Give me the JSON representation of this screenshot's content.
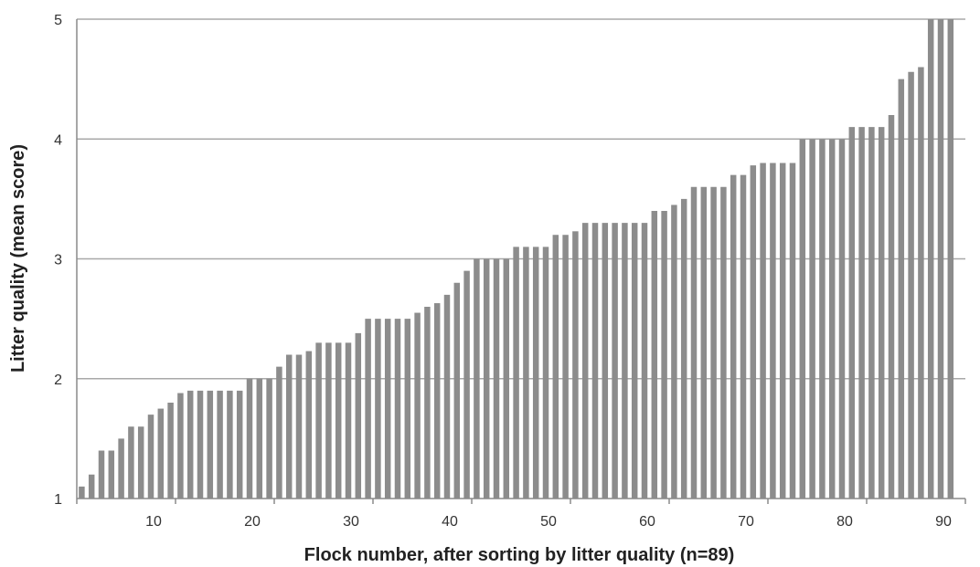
{
  "chart_data": {
    "type": "bar",
    "title": "",
    "xlabel": "Flock number, after sorting by litter quality (n=89)",
    "ylabel": "Litter quality (mean score)",
    "xlim": [
      0,
      90
    ],
    "ylim": [
      1,
      5
    ],
    "x_ticks": [
      "10",
      "20",
      "30",
      "40",
      "50",
      "60",
      "70",
      "80",
      "90"
    ],
    "y_ticks": [
      "1",
      "2",
      "3",
      "4",
      "5"
    ],
    "grid": "horizontal",
    "bar_color": "#8c8c8c",
    "x": [
      1,
      2,
      3,
      4,
      5,
      6,
      7,
      8,
      9,
      10,
      11,
      12,
      13,
      14,
      15,
      16,
      17,
      18,
      19,
      20,
      21,
      22,
      23,
      24,
      25,
      26,
      27,
      28,
      29,
      30,
      31,
      32,
      33,
      34,
      35,
      36,
      37,
      38,
      39,
      40,
      41,
      42,
      43,
      44,
      45,
      46,
      47,
      48,
      49,
      50,
      51,
      52,
      53,
      54,
      55,
      56,
      57,
      58,
      59,
      60,
      61,
      62,
      63,
      64,
      65,
      66,
      67,
      68,
      69,
      70,
      71,
      72,
      73,
      74,
      75,
      76,
      77,
      78,
      79,
      80,
      81,
      82,
      83,
      84,
      85,
      86,
      87,
      88,
      89
    ],
    "values": [
      1.1,
      1.2,
      1.4,
      1.4,
      1.5,
      1.6,
      1.6,
      1.7,
      1.75,
      1.8,
      1.88,
      1.9,
      1.9,
      1.9,
      1.9,
      1.9,
      1.9,
      2.0,
      2.0,
      2.0,
      2.1,
      2.2,
      2.2,
      2.23,
      2.3,
      2.3,
      2.3,
      2.3,
      2.38,
      2.5,
      2.5,
      2.5,
      2.5,
      2.5,
      2.55,
      2.6,
      2.63,
      2.7,
      2.8,
      2.9,
      3.0,
      3.0,
      3.0,
      3.0,
      3.1,
      3.1,
      3.1,
      3.1,
      3.2,
      3.2,
      3.23,
      3.3,
      3.3,
      3.3,
      3.3,
      3.3,
      3.3,
      3.3,
      3.4,
      3.4,
      3.45,
      3.5,
      3.6,
      3.6,
      3.6,
      3.6,
      3.7,
      3.7,
      3.78,
      3.8,
      3.8,
      3.8,
      3.8,
      4.0,
      4.0,
      4.0,
      4.0,
      4.0,
      4.1,
      4.1,
      4.1,
      4.1,
      4.2,
      4.5,
      4.56,
      4.6,
      5.0,
      5.0,
      5.0
    ]
  }
}
